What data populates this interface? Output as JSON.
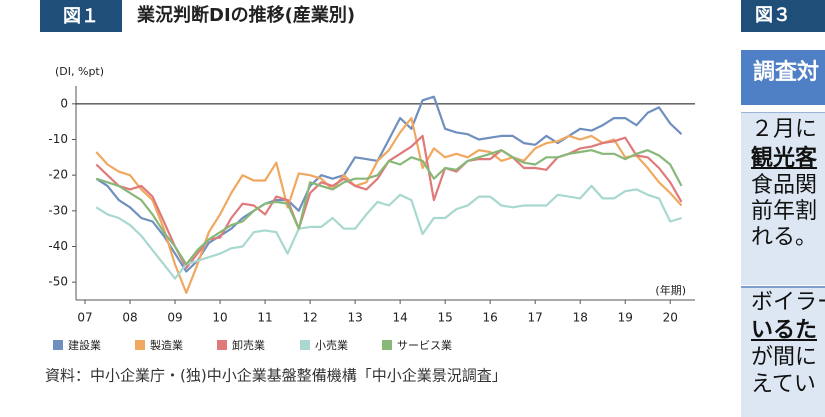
{
  "figure_label": "図１",
  "title": "業況判断DIの推移(産業別)",
  "source": "資料：中小企業庁・(独)中小企業基盤整備機構「中小企業景況調査」",
  "chart_data": {
    "type": "line",
    "ylabel": "(DI, %pt)",
    "xlabel": "(年期)",
    "xlim": [
      2006.8,
      2020.55
    ],
    "xticks": [
      {
        "value": 2007,
        "label": "07"
      },
      {
        "value": 2008,
        "label": "08"
      },
      {
        "value": 2009,
        "label": "09"
      },
      {
        "value": 2010,
        "label": "10"
      },
      {
        "value": 2011,
        "label": "11"
      },
      {
        "value": 2012,
        "label": "12"
      },
      {
        "value": 2013,
        "label": "13"
      },
      {
        "value": 2014,
        "label": "14"
      },
      {
        "value": 2015,
        "label": "15"
      },
      {
        "value": 2016,
        "label": "16"
      },
      {
        "value": 2017,
        "label": "17"
      },
      {
        "value": 2018,
        "label": "18"
      },
      {
        "value": 2019,
        "label": "19"
      },
      {
        "value": 2020,
        "label": "20"
      }
    ],
    "ylim": [
      -55,
      5
    ],
    "yticks": [
      0,
      -10,
      -20,
      -30,
      -40,
      -50
    ],
    "x": [
      2007.25,
      2007.5,
      2007.75,
      2008.0,
      2008.25,
      2008.5,
      2008.75,
      2009.0,
      2009.25,
      2009.5,
      2009.75,
      2010.0,
      2010.25,
      2010.5,
      2010.75,
      2011.0,
      2011.25,
      2011.5,
      2011.75,
      2012.0,
      2012.25,
      2012.5,
      2012.75,
      2013.0,
      2013.25,
      2013.5,
      2013.75,
      2014.0,
      2014.25,
      2014.5,
      2014.75,
      2015.0,
      2015.25,
      2015.5,
      2015.75,
      2016.0,
      2016.25,
      2016.5,
      2016.75,
      2017.0,
      2017.25,
      2017.5,
      2017.75,
      2018.0,
      2018.25,
      2018.5,
      2018.75,
      2019.0,
      2019.25,
      2019.5,
      2019.75,
      2020.0,
      2020.25
    ],
    "series": [
      {
        "name": "建設業",
        "color": "#6f8fbf",
        "values": [
          -21,
          -23,
          -27,
          -29,
          -32,
          -33,
          -37,
          -42,
          -47,
          -44,
          -39,
          -37,
          -35,
          -32,
          -30,
          -28,
          -27,
          -27,
          -30,
          -23,
          -20,
          -21,
          -20,
          -15,
          -15.5,
          -16,
          -10,
          -4,
          -7,
          1,
          2,
          -7,
          -8,
          -8.5,
          -10,
          -9.5,
          -9,
          -9,
          -11,
          -11.5,
          -9,
          -11,
          -9,
          -7,
          -7.5,
          -6,
          -4,
          -4,
          -6,
          -2.5,
          -1,
          -5.5,
          -8.5
        ]
      },
      {
        "name": "製造業",
        "color": "#f0a860",
        "values": [
          -13.5,
          -17,
          -19,
          -20,
          -24,
          -27,
          -35,
          -45,
          -53,
          -45,
          -36,
          -31,
          -25,
          -20,
          -21.5,
          -21.5,
          -16.5,
          -29,
          -19.5,
          -20,
          -21,
          -24,
          -20,
          -23,
          -22,
          -16,
          -13,
          -8,
          -4,
          -18,
          -12.5,
          -15,
          -14,
          -15,
          -13,
          -13.5,
          -16,
          -15,
          -16,
          -12.5,
          -11,
          -10.5,
          -9,
          -10,
          -9,
          -11,
          -10,
          -15,
          -14.5,
          -18,
          -22,
          -25,
          -28.5
        ]
      },
      {
        "name": "卸売業",
        "color": "#e07a7a",
        "values": [
          -17,
          -20,
          -23,
          -24,
          -23,
          -26,
          -33,
          -40,
          -46,
          -42,
          -38,
          -37.5,
          -32,
          -28,
          -28.5,
          -31,
          -26,
          -27,
          -35,
          -25,
          -22,
          -23,
          -21,
          -23,
          -24,
          -21,
          -16,
          -14,
          -12,
          -9,
          -27,
          -18,
          -19,
          -16,
          -15.5,
          -15.5,
          -13,
          -15,
          -18,
          -18,
          -18.5,
          -15,
          -14,
          -12.5,
          -12,
          -11,
          -10.5,
          -9.5,
          -14.5,
          -15,
          -18,
          -22,
          -27.5
        ]
      },
      {
        "name": "小売業",
        "color": "#a8d8d0",
        "values": [
          -29,
          -31,
          -32,
          -34,
          -37,
          -41,
          -45,
          -49,
          -45,
          -44,
          -43,
          -42,
          -40.5,
          -40,
          -36,
          -35.5,
          -36,
          -42,
          -35,
          -34.5,
          -34.5,
          -32,
          -35,
          -35,
          -31,
          -27.5,
          -28.5,
          -25.5,
          -27,
          -36.5,
          -32,
          -32,
          -29.5,
          -28.5,
          -26,
          -26,
          -28.5,
          -29,
          -28.5,
          -28.5,
          -28.5,
          -25.5,
          -26,
          -26.5,
          -23,
          -26.5,
          -26.5,
          -24.5,
          -24,
          -25.5,
          -26.5,
          -33,
          -32
        ]
      },
      {
        "name": "サービス業",
        "color": "#88b878",
        "values": [
          -21,
          -22,
          -23,
          -25,
          -27,
          -31,
          -36,
          -40,
          -45,
          -41,
          -38,
          -36,
          -34,
          -33,
          -30,
          -28,
          -27.5,
          -28,
          -35,
          -22,
          -23,
          -24,
          -22,
          -21,
          -21,
          -20,
          -16,
          -17,
          -15,
          -16,
          -21,
          -18,
          -18.5,
          -16,
          -15,
          -14,
          -13,
          -15,
          -16.5,
          -17,
          -15,
          -15,
          -14,
          -13.5,
          -13,
          -14,
          -14,
          -15.5,
          -14,
          -13,
          -14.5,
          -17,
          -23
        ]
      }
    ]
  },
  "side_panel": {
    "figure_label": "図３",
    "heading": "調査対",
    "paragraphs": [
      [
        "２月に",
        "観光客",
        "食品関",
        "前年割",
        "れる。"
      ],
      [
        "ボイラー",
        "いるた",
        "が間に",
        "えてい"
      ]
    ]
  }
}
